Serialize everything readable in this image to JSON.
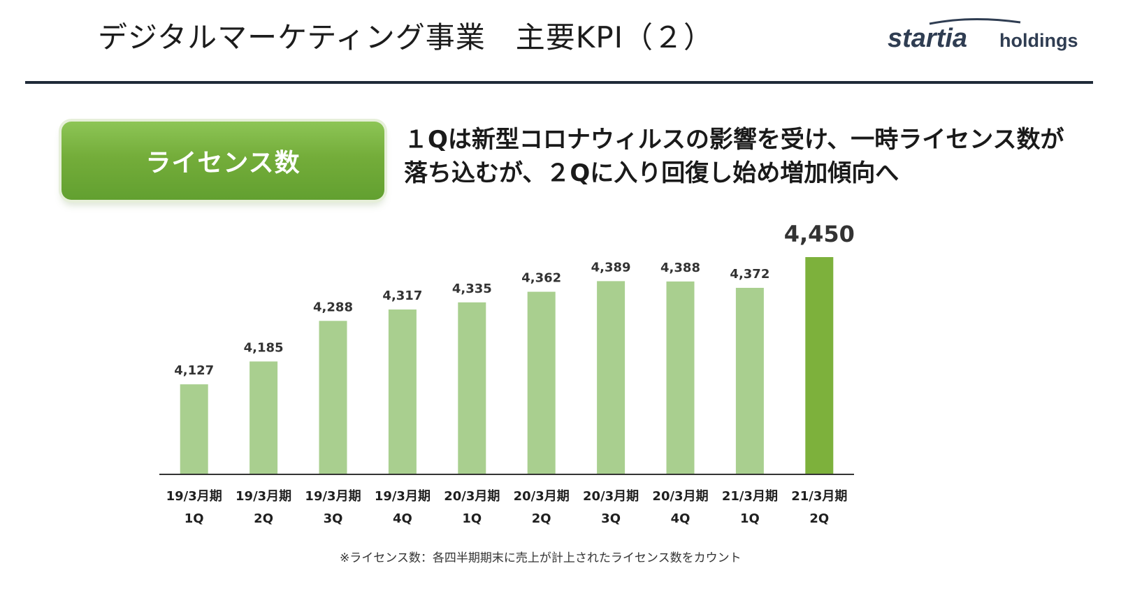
{
  "header": {
    "title": "デジタルマーケティング事業　主要KPI（２）",
    "logo_text_main": "startia",
    "logo_text_sub": "holdings"
  },
  "badge": {
    "label": "ライセンス数"
  },
  "headline": {
    "line1": "１Qは新型コロナウィルスの影響を受け、一時ライセンス数が",
    "line2": "落ち込むが、２Qに入り回復し始め増加傾向へ"
  },
  "colors": {
    "bar": "#a9cf8f",
    "bar_highlight": "#7db13c",
    "badge": "#74ad3a",
    "rule": "#1f2a38",
    "logo": "#2f3d52"
  },
  "chart_data": {
    "type": "bar",
    "categories": [
      [
        "19/3月期",
        "1Q"
      ],
      [
        "19/3月期",
        "2Q"
      ],
      [
        "19/3月期",
        "3Q"
      ],
      [
        "19/3月期",
        "4Q"
      ],
      [
        "20/3月期",
        "1Q"
      ],
      [
        "20/3月期",
        "2Q"
      ],
      [
        "20/3月期",
        "3Q"
      ],
      [
        "20/3月期",
        "4Q"
      ],
      [
        "21/3月期",
        "1Q"
      ],
      [
        "21/3月期",
        "2Q"
      ]
    ],
    "values": [
      4127,
      4185,
      4288,
      4317,
      4335,
      4362,
      4389,
      4388,
      4372,
      4450
    ],
    "value_labels": [
      "4,127",
      "4,185",
      "4,288",
      "4,317",
      "4,335",
      "4,362",
      "4,389",
      "4,388",
      "4,372",
      "4,450"
    ],
    "highlight_index": 9,
    "ylim": [
      3900,
      4450
    ],
    "title": "",
    "xlabel": "",
    "ylabel": "",
    "grid": false,
    "legend": "none"
  },
  "footnote": "※ライセンス数：各四半期期末に売上が計上されたライセンス数をカウント"
}
